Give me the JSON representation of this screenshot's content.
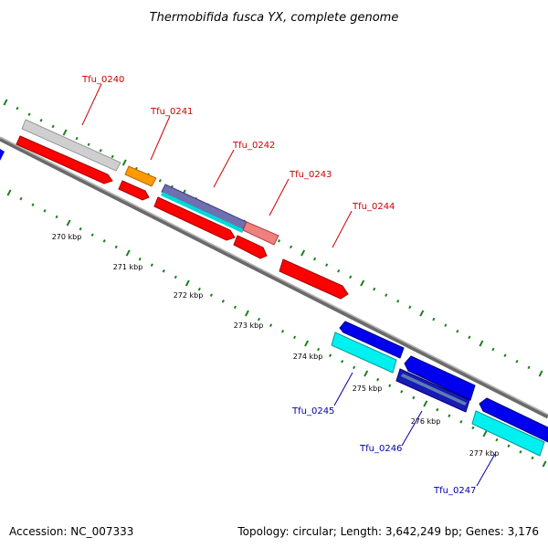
{
  "header": {
    "title": "Thermobifida fusca YX, complete genome"
  },
  "footer": {
    "accession": "Accession: NC_007333",
    "summary": "Topology: circular; Length: 3,642,249 bp; Genes: 3,176"
  },
  "colors": {
    "backbone": "#808080",
    "forward_red": "#ff0000",
    "reverse_blue": "#0000ee",
    "cyan": "#00e5e5",
    "gray_feature": "#c8c8c8",
    "orange_feature": "#ff9900",
    "pink_feature": "#f08080",
    "purple_feature": "#7070b0",
    "tick": "#1a7f1a"
  },
  "scale": {
    "ticks": [
      {
        "label": "270 kbp"
      },
      {
        "label": "271 kbp"
      },
      {
        "label": "272 kbp"
      },
      {
        "label": "273 kbp"
      },
      {
        "label": "274 kbp"
      },
      {
        "label": "275 kbp"
      },
      {
        "label": "276 kbp"
      },
      {
        "label": "277 kbp"
      }
    ]
  },
  "genes": [
    {
      "name": "Tfu_0240",
      "strand": "forward"
    },
    {
      "name": "Tfu_0241",
      "strand": "forward"
    },
    {
      "name": "Tfu_0242",
      "strand": "forward"
    },
    {
      "name": "Tfu_0243",
      "strand": "forward"
    },
    {
      "name": "Tfu_0244",
      "strand": "forward"
    },
    {
      "name": "Tfu_0245",
      "strand": "reverse"
    },
    {
      "name": "Tfu_0246",
      "strand": "reverse"
    },
    {
      "name": "Tfu_0247",
      "strand": "reverse"
    }
  ]
}
